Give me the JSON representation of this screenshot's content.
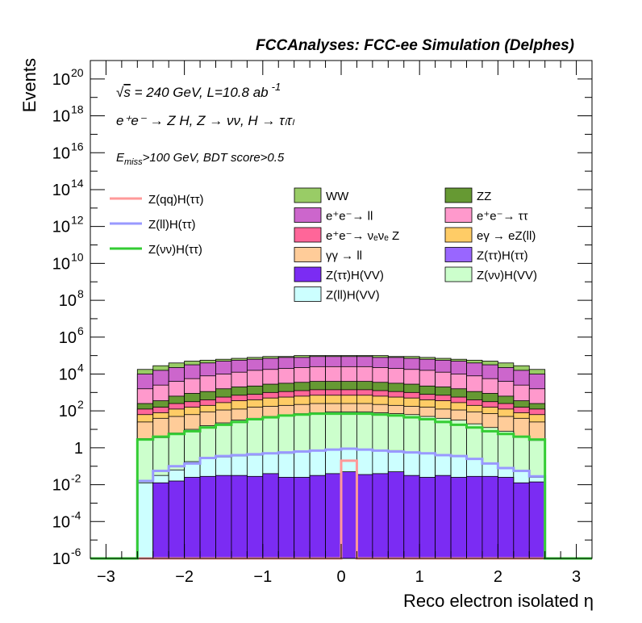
{
  "chart_data": {
    "type": "histogram-stacked",
    "title": "FCCAnalyses: FCC-ee Simulation (Delphes)",
    "annotations": {
      "energy_pre": "s",
      "energy_post": " = 240 GeV, L=10.8 ab",
      "energy_sup": "-1",
      "process": "e⁺e⁻ → Z H, Z → νν, H → τₗτₗ",
      "process_main": "e+e- → Z H, Z → νν, H → ττ",
      "cuts_E": "E",
      "cuts_sub": "miss",
      "cuts_rest": ">100 GeV, BDT score>0.5"
    },
    "xlabel": "Reco electron isolated η",
    "ylabel": "Events",
    "xlim": [
      -3.2,
      3.2
    ],
    "ylim_log10": [
      -6,
      21
    ],
    "yscale": "log",
    "xticks": [
      "−3",
      "−2",
      "−1",
      "0",
      "1",
      "2",
      "3"
    ],
    "xtick_values": [
      -3,
      -2,
      -1,
      0,
      1,
      2,
      3
    ],
    "yticks": [
      {
        "label": "10",
        "exp": "20",
        "v": 20
      },
      {
        "label": "10",
        "exp": "18",
        "v": 18
      },
      {
        "label": "10",
        "exp": "16",
        "v": 16
      },
      {
        "label": "10",
        "exp": "14",
        "v": 14
      },
      {
        "label": "10",
        "exp": "12",
        "v": 12
      },
      {
        "label": "10",
        "exp": "10",
        "v": 10
      },
      {
        "label": "10",
        "exp": "8",
        "v": 8
      },
      {
        "label": "10",
        "exp": "6",
        "v": 6
      },
      {
        "label": "10",
        "exp": "4",
        "v": 4
      },
      {
        "label": "10",
        "exp": "2",
        "v": 2
      },
      {
        "label": "1",
        "exp": "",
        "v": 0
      },
      {
        "label": "10",
        "exp": "-2",
        "v": -2
      },
      {
        "label": "10",
        "exp": "-4",
        "v": -4
      },
      {
        "label": "10",
        "exp": "-6",
        "v": -6
      }
    ],
    "bin_edges": [
      -2.6,
      -2.4,
      -2.2,
      -2.0,
      -1.8,
      -1.6,
      -1.4,
      -1.2,
      -1.0,
      -0.8,
      -0.6,
      -0.4,
      -0.2,
      0.0,
      0.2,
      0.4,
      0.6,
      0.8,
      1.0,
      1.2,
      1.4,
      1.6,
      1.8,
      2.0,
      2.2,
      2.4,
      2.6
    ],
    "stack_layers_log10_top": [
      {
        "name": "Z(ττ)H(VV)",
        "color": "#7b2cf3",
        "values": [
          -6,
          -1.9,
          -1.8,
          -1.6,
          -1.55,
          -1.5,
          -1.5,
          -1.55,
          -1.4,
          -1.6,
          -1.6,
          -1.5,
          -1.4,
          -1.3,
          -1.45,
          -1.4,
          -1.3,
          -1.5,
          -1.6,
          -1.5,
          -1.6,
          -1.55,
          -1.55,
          -1.6,
          -1.9,
          -1.85
        ]
      },
      {
        "name": "Z(ll)H(VV)",
        "color": "#ccffff",
        "values": [
          -1.9,
          -1.5,
          -1.2,
          -0.75,
          -0.6,
          -0.5,
          -0.45,
          -0.4,
          -0.3,
          -0.3,
          -0.2,
          -0.15,
          -0.1,
          -0.05,
          -0.1,
          -0.15,
          -0.15,
          -0.25,
          -0.3,
          -0.4,
          -0.45,
          -0.6,
          -0.85,
          -1.1,
          -1.3,
          -1.6
        ]
      },
      {
        "name": "Z(νν)H(VV)",
        "color": "#ccffcc",
        "values": [
          0.5,
          0.55,
          0.8,
          1.0,
          1.2,
          1.35,
          1.5,
          1.6,
          1.7,
          1.75,
          1.85,
          1.9,
          1.95,
          1.95,
          1.95,
          1.9,
          1.85,
          1.8,
          1.7,
          1.6,
          1.5,
          1.3,
          1.1,
          0.9,
          0.6,
          0.4
        ]
      },
      {
        "name": "γγ → ll",
        "color": "#ffcc99",
        "values": [
          1.4,
          1.6,
          1.7,
          1.8,
          1.95,
          2.05,
          2.1,
          2.2,
          2.25,
          2.3,
          2.35,
          2.4,
          2.4,
          2.4,
          2.4,
          2.35,
          2.3,
          2.25,
          2.2,
          2.1,
          2.05,
          1.95,
          1.85,
          1.7,
          1.6,
          1.4
        ]
      },
      {
        "name": "eγ → eZ(ll)",
        "color": "#ffcc66",
        "values": [
          1.8,
          1.9,
          2.1,
          2.2,
          2.3,
          2.45,
          2.55,
          2.6,
          2.7,
          2.75,
          2.8,
          2.85,
          2.85,
          2.85,
          2.85,
          2.8,
          2.75,
          2.7,
          2.6,
          2.55,
          2.45,
          2.3,
          2.2,
          2.1,
          1.9,
          1.8
        ]
      },
      {
        "name": "e+e- → νeνe Z",
        "color": "#ff6699",
        "values": [
          2.1,
          2.2,
          2.4,
          2.5,
          2.6,
          2.75,
          2.85,
          2.9,
          3.0,
          3.05,
          3.1,
          3.15,
          3.15,
          3.15,
          3.15,
          3.1,
          3.05,
          3.0,
          2.9,
          2.85,
          2.75,
          2.6,
          2.5,
          2.4,
          2.2,
          2.1
        ]
      },
      {
        "name": "ZZ",
        "color": "#669933",
        "values": [
          2.4,
          2.55,
          2.8,
          2.95,
          3.05,
          3.2,
          3.3,
          3.35,
          3.45,
          3.5,
          3.55,
          3.6,
          3.6,
          3.6,
          3.6,
          3.55,
          3.5,
          3.45,
          3.35,
          3.3,
          3.2,
          3.05,
          2.95,
          2.8,
          2.55,
          2.4
        ]
      },
      {
        "name": "e+e- → ττ",
        "color": "#ff99cc",
        "values": [
          3.2,
          3.4,
          3.6,
          3.75,
          3.9,
          4.0,
          4.1,
          4.2,
          4.25,
          4.3,
          4.35,
          4.4,
          4.4,
          4.4,
          4.4,
          4.35,
          4.3,
          4.25,
          4.2,
          4.1,
          4.0,
          3.9,
          3.75,
          3.6,
          3.4,
          3.2
        ]
      },
      {
        "name": "e+e- → ll",
        "color": "#cc66cc",
        "values": [
          4.0,
          4.2,
          4.35,
          4.5,
          4.6,
          4.7,
          4.75,
          4.8,
          4.85,
          4.9,
          4.9,
          4.95,
          4.95,
          4.95,
          4.95,
          4.9,
          4.9,
          4.85,
          4.8,
          4.75,
          4.7,
          4.6,
          4.5,
          4.35,
          4.2,
          4.0
        ]
      },
      {
        "name": "WW",
        "color": "#99cc66",
        "values": [
          4.25,
          4.45,
          4.6,
          4.7,
          4.75,
          4.8,
          4.85,
          4.9,
          4.95,
          4.95,
          5.0,
          5.0,
          5.0,
          5.0,
          5.0,
          5.0,
          4.95,
          4.95,
          4.9,
          4.85,
          4.8,
          4.75,
          4.7,
          4.6,
          4.45,
          4.25
        ]
      }
    ],
    "overlay_lines_log10": [
      {
        "name": "Z(qq)H(ττ)",
        "color": "#ff9999",
        "values": [
          -6,
          -6,
          -6,
          -6,
          -6,
          -6,
          -6,
          -6,
          -6,
          -6,
          -6,
          -6,
          -6,
          -0.7,
          -6,
          -6,
          -6,
          -6,
          -6,
          -6,
          -6,
          -6,
          -6,
          -6,
          -6,
          -6
        ]
      },
      {
        "name": "Z(ll)H(ττ)",
        "color": "#9999ff",
        "values": [
          -1.8,
          -1.25,
          -1.0,
          -0.85,
          -0.55,
          -0.45,
          -0.4,
          -0.35,
          -0.3,
          -0.25,
          -0.2,
          -0.15,
          -0.1,
          -0.05,
          -0.1,
          -0.15,
          -0.2,
          -0.25,
          -0.3,
          -0.4,
          -0.45,
          -0.6,
          -0.85,
          -1.1,
          -1.25,
          -1.55
        ]
      },
      {
        "name": "Z(νν)H(ττ)",
        "color": "#33cc33",
        "values": [
          0.45,
          0.6,
          0.75,
          0.9,
          1.1,
          1.25,
          1.4,
          1.55,
          1.65,
          1.75,
          1.8,
          1.85,
          1.85,
          1.85,
          1.85,
          1.8,
          1.75,
          1.65,
          1.55,
          1.4,
          1.25,
          1.1,
          0.9,
          0.75,
          0.6,
          0.45
        ]
      }
    ],
    "legend_left": [
      {
        "name": "Z(qq)H(ττ)",
        "color": "#ff9999"
      },
      {
        "name": "Z(ll)H(ττ)",
        "color": "#9999ff"
      },
      {
        "name": "Z(νν)H(ττ)",
        "color": "#33cc33"
      }
    ],
    "legend_right": [
      {
        "name": "WW",
        "color": "#99cc66"
      },
      {
        "name": "ZZ",
        "color": "#669933"
      },
      {
        "name": "e⁺e⁻→ ll",
        "color": "#cc66cc"
      },
      {
        "name": "e⁺e⁻→ ττ",
        "color": "#ff99cc"
      },
      {
        "name": "e⁺e⁻→ νₑνₑ Z",
        "color": "#ff6699"
      },
      {
        "name": "eγ → eZ(ll)",
        "color": "#ffcc66"
      },
      {
        "name": "γγ → ll",
        "color": "#ffcc99"
      },
      {
        "name": "Z(ττ)H(ττ)",
        "color": "#9966ff"
      },
      {
        "name": "Z(ττ)H(VV)",
        "color": "#7b2cf3"
      },
      {
        "name": "Z(νν)H(VV)",
        "color": "#ccffcc"
      },
      {
        "name": "Z(ll)H(VV)",
        "color": "#ccffff"
      }
    ]
  }
}
